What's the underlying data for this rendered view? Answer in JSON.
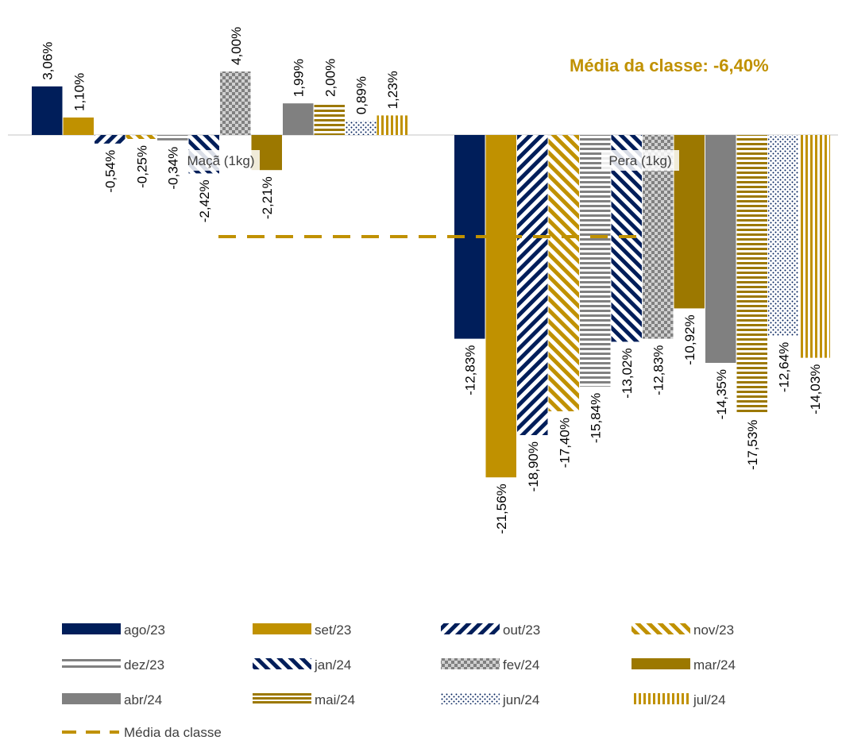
{
  "chart_data": {
    "type": "bar",
    "categories": [
      "Maçã (1kg)",
      "Pera (1kg)"
    ],
    "series": [
      {
        "name": "ago/23",
        "values": [
          3.06,
          -12.83
        ],
        "labels": [
          "3,06%",
          "-12,83%"
        ],
        "color": "#001E5A",
        "pattern": "solid"
      },
      {
        "name": "set/23",
        "values": [
          1.1,
          -21.56
        ],
        "labels": [
          "1,10%",
          "-21,56%"
        ],
        "color": "#C09100",
        "pattern": "solid"
      },
      {
        "name": "out/23",
        "values": [
          -0.54,
          -18.9
        ],
        "labels": [
          "-0,54%",
          "-18,90%"
        ],
        "color": "#001E5A",
        "pattern": "diag-up"
      },
      {
        "name": "nov/23",
        "values": [
          -0.25,
          -17.4
        ],
        "labels": [
          "-0,25%",
          "-17,40%"
        ],
        "color": "#C09100",
        "pattern": "diag-down"
      },
      {
        "name": "dez/23",
        "values": [
          -0.34,
          -15.84
        ],
        "labels": [
          "-0,34%",
          "-15,84%"
        ],
        "color": "#808080",
        "pattern": "horizontal"
      },
      {
        "name": "jan/24",
        "values": [
          -2.42,
          -13.02
        ],
        "labels": [
          "-2,42%",
          "-13,02%"
        ],
        "color": "#001E5A",
        "pattern": "diag-down"
      },
      {
        "name": "fev/24",
        "values": [
          4.0,
          -12.83
        ],
        "labels": [
          "4,00%",
          "-12,83%"
        ],
        "color": "#808080",
        "pattern": "checker"
      },
      {
        "name": "mar/24",
        "values": [
          -2.21,
          -10.92
        ],
        "labels": [
          "-2,21%",
          "-10,92%"
        ],
        "color": "#9C7800",
        "pattern": "solid"
      },
      {
        "name": "abr/24",
        "values": [
          1.99,
          -14.35
        ],
        "labels": [
          "1,99%",
          "-14,35%"
        ],
        "color": "#808080",
        "pattern": "solid"
      },
      {
        "name": "mai/24",
        "values": [
          2.0,
          -17.53
        ],
        "labels": [
          "2,00%",
          "-17,53%"
        ],
        "color": "#9C7800",
        "pattern": "horizontal"
      },
      {
        "name": "jun/24",
        "values": [
          0.89,
          -12.64
        ],
        "labels": [
          "0,89%",
          "-12,64%"
        ],
        "color": "#001E5A",
        "pattern": "dots"
      },
      {
        "name": "jul/24",
        "values": [
          1.23,
          -14.03
        ],
        "labels": [
          "1,23%",
          "-14,03%"
        ],
        "color": "#C09100",
        "pattern": "vertical"
      }
    ],
    "average": {
      "name": "Média da classe",
      "value": -6.4,
      "color": "#C09100"
    },
    "annotation": "Média da classe: -6,40%",
    "title": "",
    "xlabel": "",
    "ylabel": "",
    "ylim": [
      -23,
      5
    ],
    "legend_position": "bottom",
    "grid": false
  }
}
